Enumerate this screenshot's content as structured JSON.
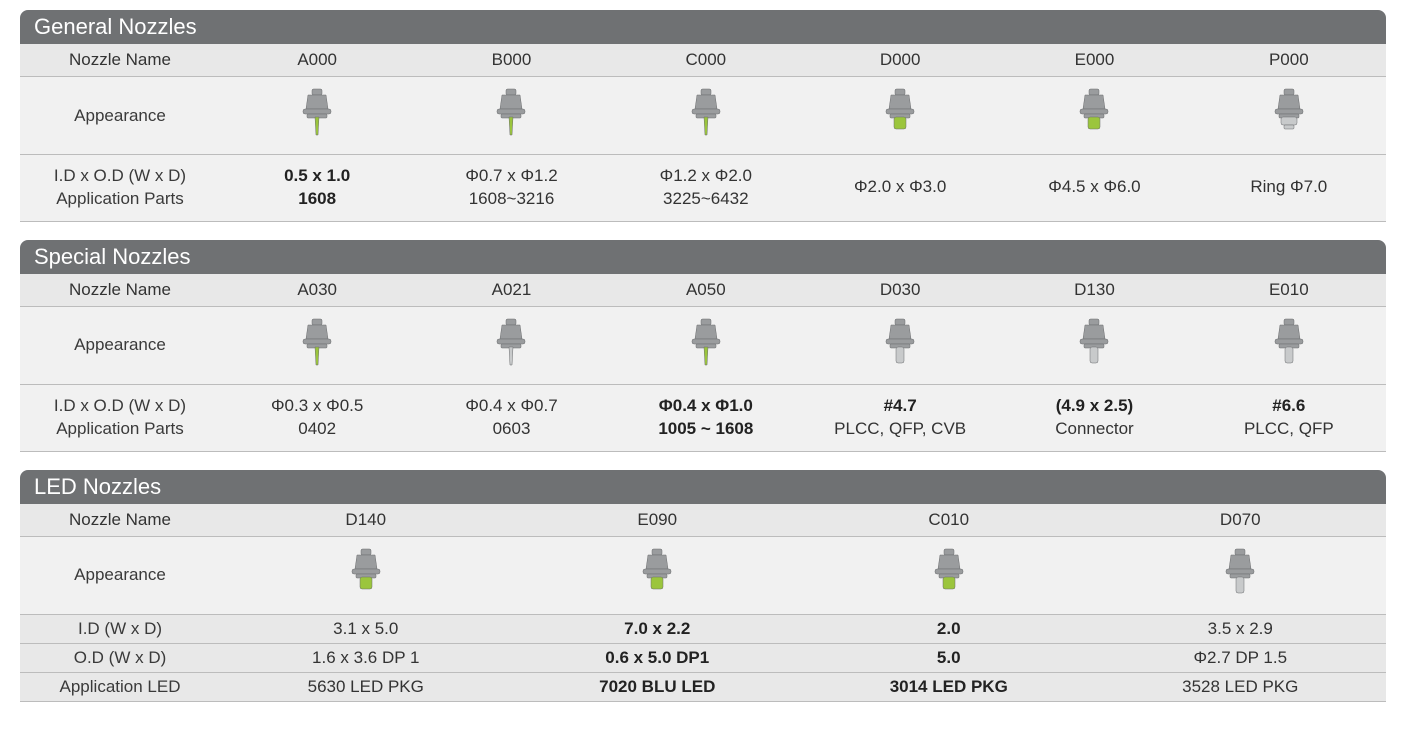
{
  "colors": {
    "section_bg": "#6f7173",
    "section_text": "#ffffff",
    "header_bg": "#e8e8e8",
    "row_bg": "#f1f1f1",
    "border": "#bcbcbc",
    "body_gray": "#9a9c9e",
    "body_dark": "#6b6d6f",
    "tip_green": "#9bc53d",
    "tip_silver": "#c8cacb"
  },
  "labels": {
    "nozzle_name": "Nozzle Name",
    "appearance": "Appearance",
    "id_od": "I.D x O.D (W x D)",
    "application_parts": "Application Parts",
    "id": "I.D (W x D)",
    "od": "O.D (W x D)",
    "application_led": "Application LED"
  },
  "sections": [
    {
      "title": "General Nozzles",
      "columns": [
        {
          "name": "A000",
          "icon": "narrow-green",
          "dims": "0.5 x 1.0",
          "parts": "1608",
          "bold": true
        },
        {
          "name": "B000",
          "icon": "narrow-green",
          "dims": "Φ0.7 x Φ1.2",
          "parts": "1608~3216",
          "bold": false
        },
        {
          "name": "C000",
          "icon": "narrow-green",
          "dims": "Φ1.2 x Φ2.0",
          "parts": "3225~6432",
          "bold": false
        },
        {
          "name": "D000",
          "icon": "wide-green",
          "dims": "Φ2.0 x Φ3.0",
          "parts": "",
          "bold": false
        },
        {
          "name": "E000",
          "icon": "wide-green",
          "dims": "Φ4.5 x Φ6.0",
          "parts": "",
          "bold": false
        },
        {
          "name": "P000",
          "icon": "ring-silver",
          "dims": "Ring Φ7.0",
          "parts": "",
          "bold": false
        }
      ]
    },
    {
      "title": "Special Nozzles",
      "columns": [
        {
          "name": "A030",
          "icon": "narrow-green",
          "dims": "Φ0.3 x Φ0.5",
          "parts": "0402",
          "bold": false
        },
        {
          "name": "A021",
          "icon": "narrow-silver",
          "dims": "Φ0.4 x Φ0.7",
          "parts": "0603",
          "bold": false
        },
        {
          "name": "A050",
          "icon": "narrow-green",
          "dims": "Φ0.4 x Φ1.0",
          "parts": "1005 ~ 1608",
          "bold": true
        },
        {
          "name": "D030",
          "icon": "tube-silver",
          "dims": "#4.7",
          "parts": "PLCC, QFP, CVB",
          "bold": true
        },
        {
          "name": "D130",
          "icon": "tube-silver",
          "dims": "(4.9 x 2.5)",
          "parts": "Connector",
          "bold": true
        },
        {
          "name": "E010",
          "icon": "tube-silver",
          "dims": "#6.6",
          "parts": "PLCC, QFP",
          "bold": true
        }
      ]
    }
  ],
  "led_section": {
    "title": "LED Nozzles",
    "columns": [
      {
        "name": "D140",
        "icon": "wide-green",
        "id": "3.1 x 5.0",
        "od": "1.6 x 3.6 DP 1",
        "app": "5630 LED PKG",
        "bold": false
      },
      {
        "name": "E090",
        "icon": "wide-green",
        "id": "7.0 x 2.2",
        "od": "0.6 x 5.0 DP1",
        "app": "7020 BLU LED",
        "bold": true
      },
      {
        "name": "C010",
        "icon": "wide-green",
        "id": "2.0",
        "od": "5.0",
        "app": "3014 LED PKG",
        "bold": true
      },
      {
        "name": "D070",
        "icon": "tube-silver",
        "id": "3.5 x 2.9",
        "od": "Φ2.7 DP 1.5",
        "app": "3528 LED PKG",
        "bold": false
      }
    ]
  },
  "icons": {
    "narrow-green": {
      "tip": "narrow",
      "tip_color": "#9bc53d"
    },
    "narrow-silver": {
      "tip": "narrow",
      "tip_color": "#c8cacb"
    },
    "wide-green": {
      "tip": "wide",
      "tip_color": "#9bc53d"
    },
    "ring-silver": {
      "tip": "ring",
      "tip_color": "#c8cacb"
    },
    "tube-silver": {
      "tip": "tube",
      "tip_color": "#c8cacb"
    }
  }
}
